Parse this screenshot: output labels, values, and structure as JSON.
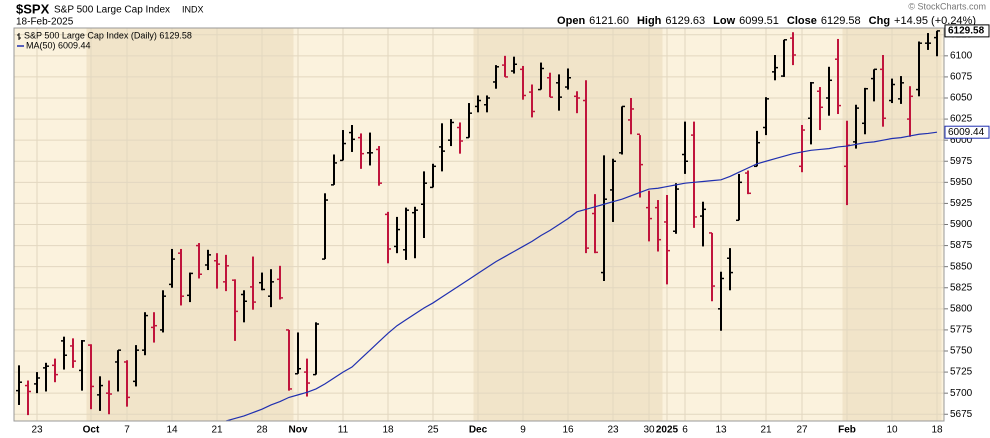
{
  "header": {
    "symbol": "$SPX",
    "name": "S&P 500 Large Cap Index",
    "exchange": "INDX",
    "date": "18-Feb-2025",
    "quote": [
      {
        "label": "Open",
        "value": "6121.60"
      },
      {
        "label": "High",
        "value": "6129.63"
      },
      {
        "label": "Low",
        "value": "6099.51"
      },
      {
        "label": "Close",
        "value": "6129.58"
      },
      {
        "label": "Chg",
        "value": "+14.95 (+0.24%)"
      }
    ],
    "credit": "© StockCharts.com"
  },
  "chart_data": {
    "type": "ohlc",
    "name": "S&P 500 Large Cap Index (Daily) 6129.58",
    "price_label": "6129.58",
    "up_color": "#000000",
    "down_color": "#c0143c",
    "categories": [
      null,
      null,
      "23",
      null,
      null,
      null,
      null,
      null,
      "Oct",
      null,
      null,
      null,
      "7",
      null,
      null,
      null,
      null,
      "14",
      null,
      null,
      null,
      null,
      "21",
      null,
      null,
      null,
      null,
      "28",
      null,
      null,
      null,
      "Nov",
      null,
      null,
      null,
      null,
      "11",
      null,
      null,
      null,
      null,
      "18",
      null,
      null,
      null,
      null,
      "25",
      null,
      null,
      null,
      null,
      "Dec",
      null,
      null,
      null,
      null,
      "9",
      null,
      null,
      null,
      null,
      "16",
      null,
      null,
      null,
      null,
      "23",
      null,
      null,
      null,
      "30",
      null,
      "2025",
      null,
      "6",
      null,
      null,
      null,
      "13",
      null,
      null,
      null,
      null,
      "21",
      null,
      null,
      null,
      "27",
      null,
      null,
      null,
      null,
      "Feb",
      null,
      null,
      null,
      null,
      "10",
      null,
      null,
      null,
      null,
      "18"
    ],
    "open": [
      5703,
      5709,
      5711,
      5730,
      5733,
      5762,
      5756,
      5727,
      5757,
      5698,
      5700,
      5737,
      5737,
      5714,
      5751,
      5778,
      5775,
      5829,
      5866,
      5816,
      5875,
      5852,
      5857,
      5832,
      5834,
      5817,
      5826,
      5831,
      5815,
      5835,
      5775,
      5723,
      5725,
      5722,
      5859,
      5947,
      5976,
      6009,
      6003,
      5985,
      5989,
      5912,
      5874,
      5870,
      5914,
      5924,
      5944,
      5992,
      6000,
      6015,
      6003,
      6040,
      6042,
      6069,
      6089,
      6082,
      6084,
      6057,
      6060,
      6074,
      6068,
      6063,
      6052,
      6047,
      5913,
      5843,
      5941,
      5985,
      6024,
      6007,
      5920,
      5920,
      5903,
      5892,
      5983,
      6006,
      5910,
      5890,
      5800,
      5860,
      5905,
      5961,
      5969,
      6015,
      6081,
      6076,
      6121,
      5969,
      6026,
      6058,
      6050,
      6096,
      5969,
      5998,
      6020,
      6073,
      6084,
      6047,
      6049,
      6025,
      6060,
      6115,
      6121.6
    ],
    "high": [
      5733,
      5715,
      5725,
      5736,
      5741,
      5767,
      5765,
      5763,
      5758,
      5720,
      5715,
      5751,
      5739,
      5757,
      5796,
      5796,
      5822,
      5871,
      5871,
      5843,
      5878,
      5870,
      5866,
      5864,
      5835,
      5822,
      5862,
      5843,
      5847,
      5851,
      5775,
      5772,
      5741,
      5784,
      5937,
      5983,
      6012,
      6018,
      6008,
      6009,
      5993,
      5915,
      5909,
      5920,
      5921,
      5963,
      5972,
      6020,
      6025,
      6021,
      6044,
      6053,
      6053,
      6089,
      6100,
      6099,
      6088,
      6066,
      6092,
      6080,
      6078,
      6085,
      6058,
      6071,
      5936,
      5982,
      5978,
      6040,
      6050,
      6006,
      5940,
      5929,
      5935,
      5949,
      6022,
      6022,
      5927,
      5890,
      5844,
      5872,
      5960,
      5964,
      6011,
      6051,
      6101,
      6119,
      6128,
      6018,
      6069,
      6063,
      6087,
      6120,
      6023,
      6042,
      6062,
      6084,
      6101,
      6073,
      6076,
      6064,
      6117,
      6127,
      6129.63
    ],
    "low": [
      5686,
      5674,
      5700,
      5702,
      5713,
      5728,
      5730,
      5703,
      5681,
      5679,
      5675,
      5702,
      5684,
      5708,
      5745,
      5760,
      5772,
      5825,
      5804,
      5808,
      5836,
      5846,
      5824,
      5821,
      5762,
      5784,
      5799,
      5822,
      5802,
      5811,
      5703,
      5723,
      5696,
      5722,
      5859,
      5947,
      5976,
      5986,
      5966,
      5970,
      5946,
      5854,
      5866,
      5858,
      5860,
      5884,
      5944,
      5963,
      5993,
      5984,
      6003,
      6033,
      6033,
      6061,
      6075,
      6079,
      6048,
      6027,
      6060,
      6051,
      6035,
      6060,
      6032,
      5866,
      5866,
      5833,
      5903,
      5983,
      6007,
      5932,
      5880,
      5868,
      5829,
      5889,
      5960,
      5896,
      5874,
      5809,
      5774,
      5822,
      5905,
      5936,
      5969,
      6006,
      6071,
      6075,
      6089,
      5962,
      5995,
      6012,
      6029,
      6031,
      5923,
      5990,
      6007,
      6046,
      6016,
      6044,
      6043,
      6004,
      6052,
      6107,
      6099.51
    ],
    "close": [
      5713,
      5702,
      5718,
      5732,
      5722,
      5745,
      5738,
      5762,
      5708,
      5709,
      5699,
      5751,
      5695,
      5751,
      5792,
      5780,
      5815,
      5859,
      5815,
      5842,
      5841,
      5864,
      5853,
      5851,
      5797,
      5809,
      5808,
      5823,
      5832,
      5813,
      5705,
      5729,
      5712,
      5782,
      5929,
      5973,
      5996,
      6001,
      5984,
      5985,
      5949,
      5871,
      5894,
      5917,
      5917,
      5949,
      5969,
      5987,
      6021,
      5999,
      6032,
      6047,
      6050,
      6087,
      6075,
      6090,
      6053,
      6034,
      6085,
      6051,
      6051,
      6074,
      6050,
      5872,
      5867,
      5930,
      5975,
      6040,
      6037,
      5971,
      5907,
      5882,
      5869,
      5942,
      5975,
      5909,
      5918,
      5827,
      5836,
      5843,
      5950,
      5937,
      5997,
      6049,
      6086,
      6119,
      6101,
      6012,
      6068,
      6039,
      6071,
      6041,
      5994,
      6038,
      6061,
      6084,
      6026,
      6066,
      6068,
      6052,
      6115,
      6115,
      6129.58
    ],
    "ma": {
      "name": "MA(50) 6009.44",
      "label": "6009.44",
      "color": "#2030b0",
      "values": [
        null,
        null,
        null,
        null,
        null,
        null,
        null,
        null,
        null,
        null,
        null,
        null,
        null,
        null,
        null,
        null,
        null,
        null,
        null,
        null,
        null,
        null,
        null,
        5667,
        5670,
        5673,
        5677,
        5681,
        5686,
        5690,
        5695,
        5698,
        5701,
        5705,
        5711,
        5718,
        5725,
        5731,
        5741,
        5751,
        5761,
        5771,
        5780,
        5787,
        5794,
        5801,
        5807,
        5814,
        5821,
        5828,
        5835,
        5842,
        5849,
        5856,
        5862,
        5868,
        5874,
        5880,
        5887,
        5893,
        5900,
        5907,
        5915,
        5918,
        5921,
        5924,
        5927,
        5930,
        5934,
        5938,
        5942,
        5943,
        5945,
        5947,
        5949,
        5950,
        5951,
        5952,
        5953,
        5957,
        5962,
        5967,
        5972,
        5975,
        5978,
        5981,
        5984,
        5986,
        5988,
        5989,
        5990,
        5992,
        5993,
        5995,
        5997,
        5998,
        6000,
        6002,
        6003,
        6005,
        6007,
        6008,
        6009.44
      ]
    },
    "ylim": [
      5667,
      6133
    ],
    "yticks": [
      5675,
      5700,
      5725,
      5750,
      5775,
      5800,
      5825,
      5850,
      5875,
      5900,
      5925,
      5950,
      5975,
      6000,
      6025,
      6050,
      6075,
      6100,
      6125
    ],
    "grid": true
  }
}
